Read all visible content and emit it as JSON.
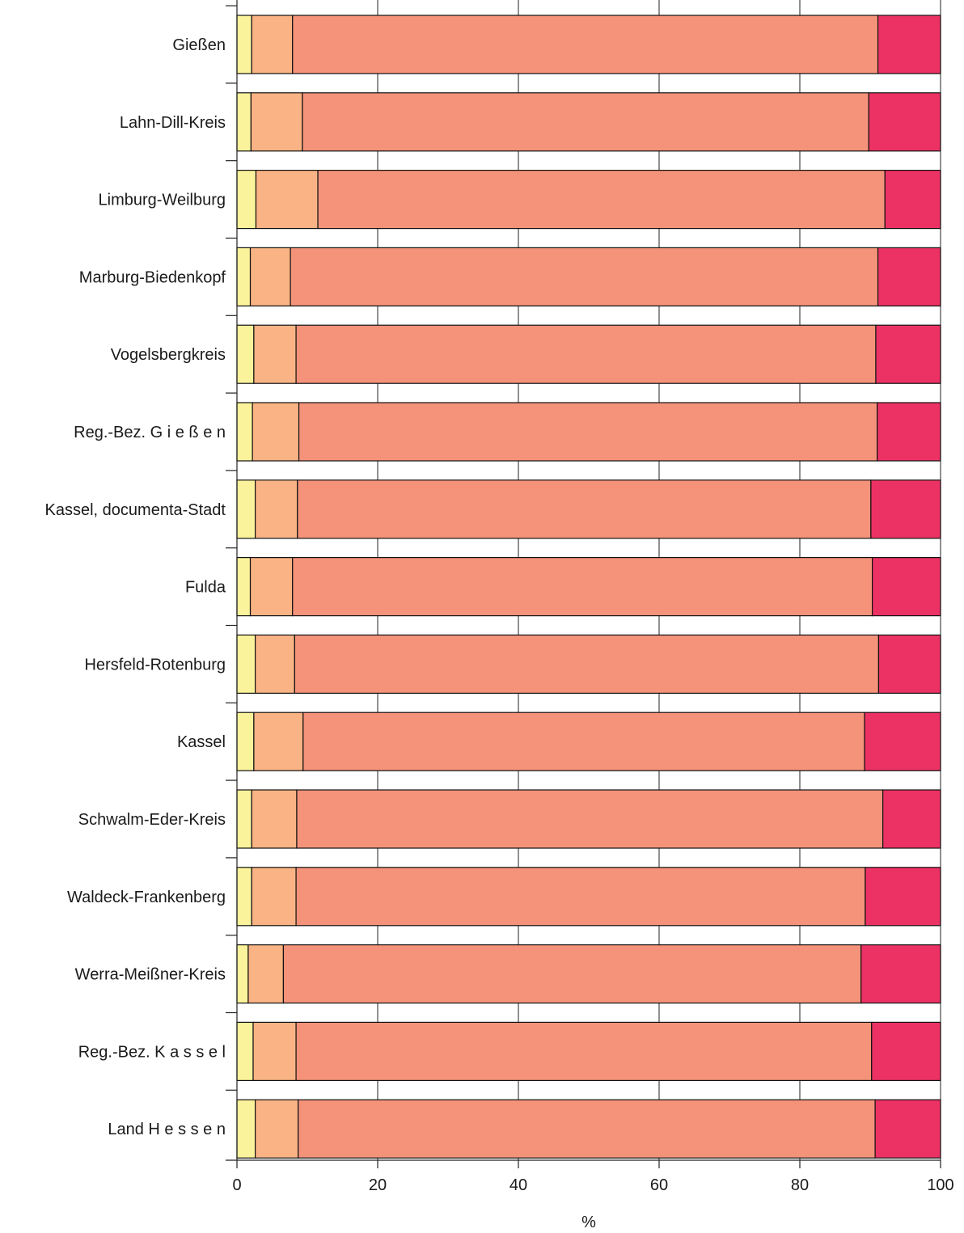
{
  "chart_data": {
    "type": "bar",
    "orientation": "horizontal",
    "stacked": true,
    "categories": [
      "Gießen",
      "Lahn-Dill-Kreis",
      "Limburg-Weilburg",
      "Marburg-Biedenkopf",
      "Vogelsbergkreis",
      "Reg.-Bez. G i e ß e n",
      "Kassel, documenta-Stadt",
      "Fulda",
      "Hersfeld-Rotenburg",
      "Kassel",
      "Schwalm-Eder-Kreis",
      "Waldeck-Frankenberg",
      "Werra-Meißner-Kreis",
      "Reg.-Bez. K a s s e l",
      "Land H e s s e n"
    ],
    "series": [
      {
        "color": "#fbf39b",
        "values": [
          2.1,
          2.0,
          2.7,
          1.9,
          2.4,
          2.2,
          2.6,
          1.9,
          2.6,
          2.4,
          2.1,
          2.1,
          1.6,
          2.3,
          2.6
        ]
      },
      {
        "color": "#f9b384",
        "values": [
          5.8,
          7.3,
          8.8,
          5.7,
          6.0,
          6.6,
          6.0,
          6.0,
          5.6,
          7.0,
          6.4,
          6.3,
          5.0,
          6.1,
          6.1
        ]
      },
      {
        "color": "#f4937a",
        "values": [
          83.2,
          80.5,
          80.6,
          83.5,
          82.4,
          82.2,
          81.5,
          82.4,
          83.0,
          79.8,
          83.3,
          80.9,
          82.1,
          81.8,
          82.0
        ]
      },
      {
        "color": "#ec3264",
        "values": [
          8.9,
          10.2,
          7.9,
          8.9,
          9.2,
          9.0,
          9.9,
          9.7,
          8.8,
          10.8,
          8.2,
          10.7,
          11.3,
          9.8,
          9.3
        ]
      }
    ],
    "xlim": [
      0,
      100
    ],
    "xticks": [
      "0",
      "20",
      "40",
      "60",
      "80",
      "100"
    ],
    "xlabel": "%",
    "ylabel": "",
    "title": "",
    "grid": "vertical",
    "legend": "none"
  }
}
